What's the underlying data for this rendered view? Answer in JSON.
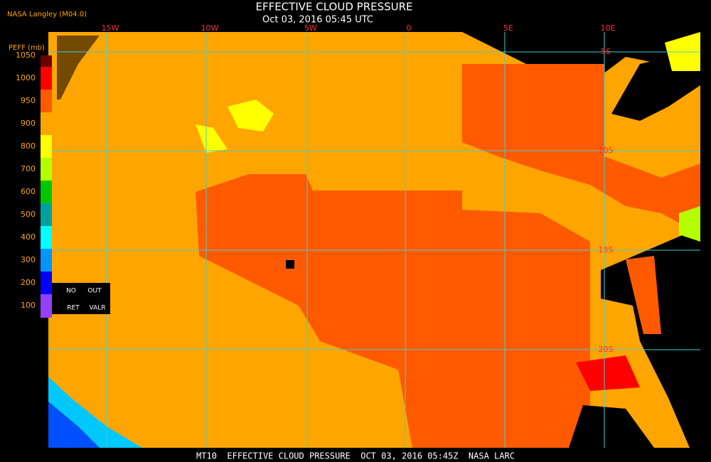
{
  "header": {
    "source": "NASA Langley (M04.0)",
    "title": "EFFECTIVE CLOUD PRESSURE",
    "timestamp": "Oct 03, 2016 05:45 UTC"
  },
  "legend": {
    "title": "PEFF (mb)",
    "items": [
      {
        "label": "1050",
        "color": "#6b0000"
      },
      {
        "label": "1000",
        "color": "#ff0000"
      },
      {
        "label": "950",
        "color": "#ff5a00"
      },
      {
        "label": "900",
        "color": "#ffa500"
      },
      {
        "label": "800",
        "color": "#ffff00"
      },
      {
        "label": "700",
        "color": "#b4ff00"
      },
      {
        "label": "600",
        "color": "#00c800"
      },
      {
        "label": "500",
        "color": "#00a0a0"
      },
      {
        "label": "400",
        "color": "#00ffff"
      },
      {
        "label": "300",
        "color": "#0096ff"
      },
      {
        "label": "200",
        "color": "#0000ff"
      },
      {
        "label": "100",
        "color": "#9640ff"
      }
    ],
    "flags": [
      "NO",
      "OUT",
      "RET",
      "VALR"
    ]
  },
  "map": {
    "longitude_labels": [
      "15W",
      "10W",
      "5W",
      "0",
      "5E",
      "10E"
    ],
    "latitude_labels": [
      "5S",
      "10S",
      "15S",
      "20S"
    ]
  },
  "footer": "MT10  EFFECTIVE CLOUD PRESSURE  OCT 03, 2016 05:45Z  NASA LARC"
}
